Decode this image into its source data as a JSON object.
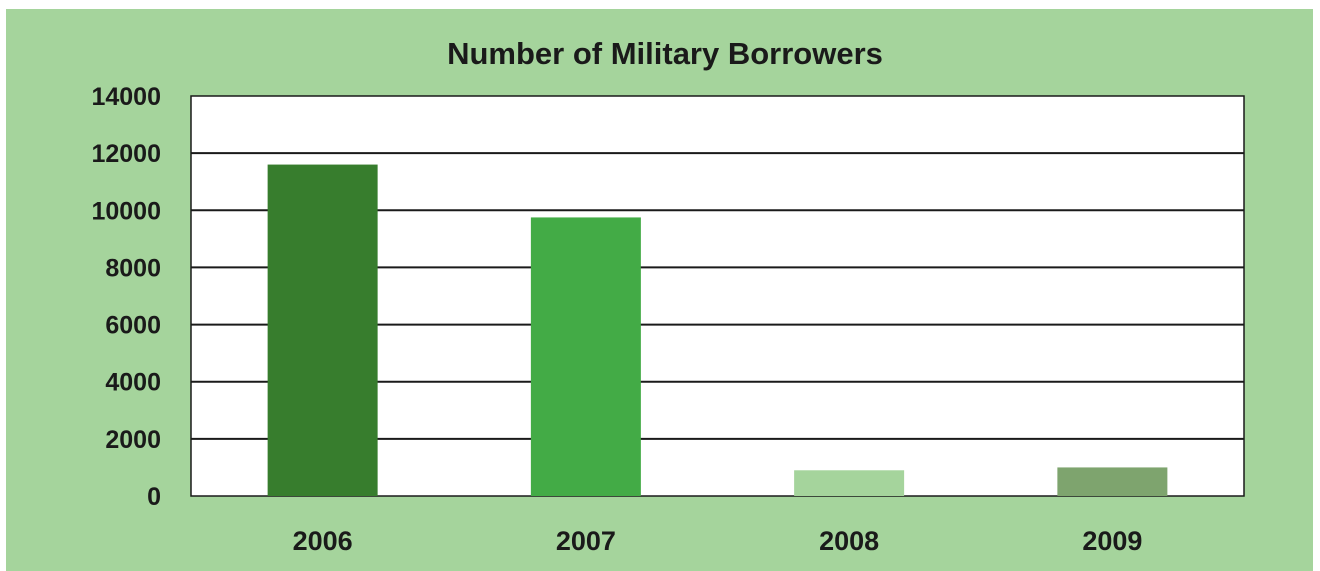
{
  "chart_data": {
    "type": "bar",
    "title": "Number of Military Borrowers",
    "xlabel": "",
    "ylabel": "",
    "categories": [
      "2006",
      "2007",
      "2008",
      "2009"
    ],
    "values": [
      11600,
      9750,
      900,
      1000
    ],
    "bar_colors": [
      "#377d2d",
      "#43ab46",
      "#a5d49c",
      "#7ea46e"
    ],
    "ylim": [
      0,
      14000
    ],
    "yticks": [
      "0",
      "2000",
      "4000",
      "6000",
      "8000",
      "10000",
      "12000",
      "14000"
    ],
    "grid": true,
    "legend": "none"
  },
  "colors": {
    "panel_background": "#a5d49c",
    "plot_background": "#ffffff",
    "gridline": "#1a1a1a",
    "text": "#1a1a1a"
  }
}
